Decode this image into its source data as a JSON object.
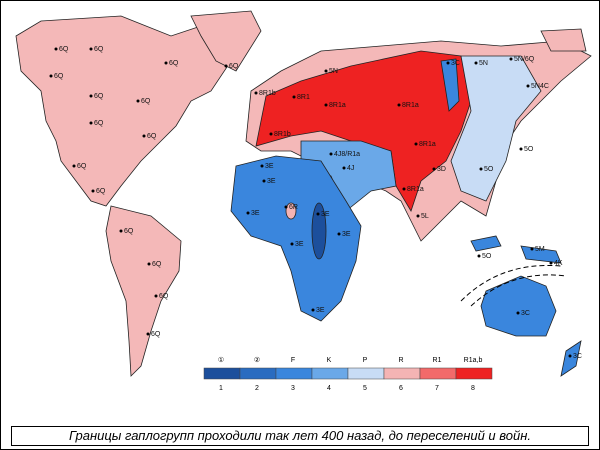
{
  "caption": "Границы гаплогрупп проходили так лет 400 назад, до переселений и войн.",
  "legend": {
    "items": [
      {
        "top": "①",
        "number": 1,
        "color": "#1c4f9c"
      },
      {
        "top": "②",
        "number": 2,
        "color": "#2a6cc0"
      },
      {
        "top": "F",
        "number": 3,
        "color": "#3a86dd"
      },
      {
        "top": "K",
        "number": 4,
        "color": "#6aa8e8"
      },
      {
        "top": "P",
        "number": 5,
        "color": "#c8dcf5"
      },
      {
        "top": "R",
        "number": 6,
        "color": "#f4b4b4"
      },
      {
        "top": "R1",
        "number": 7,
        "color": "#f26a6a"
      },
      {
        "top": "R1a,b",
        "number": 8,
        "color": "#ee2222"
      }
    ]
  },
  "labels": [
    "6Q",
    "6Q",
    "6Q",
    "6Q",
    "6Q",
    "6Q",
    "6Q",
    "6Q",
    "6Q",
    "6Q",
    "6Q",
    "6Q",
    "6Q",
    "6Q",
    "6Q",
    "8R1b",
    "8R1",
    "5N",
    "8R1a",
    "8R1a",
    "3C",
    "5N",
    "5N/6Q",
    "5N4C",
    "8R1b",
    "3E",
    "4J8/R1a",
    "4J",
    "8R1a",
    "3D",
    "5O",
    "5O",
    "8R1a",
    "5L",
    "5O",
    "3E",
    "3E",
    "6R",
    "3E",
    "3E",
    "3E",
    "3E",
    "5M",
    "4K",
    "3C",
    "3C"
  ]
}
